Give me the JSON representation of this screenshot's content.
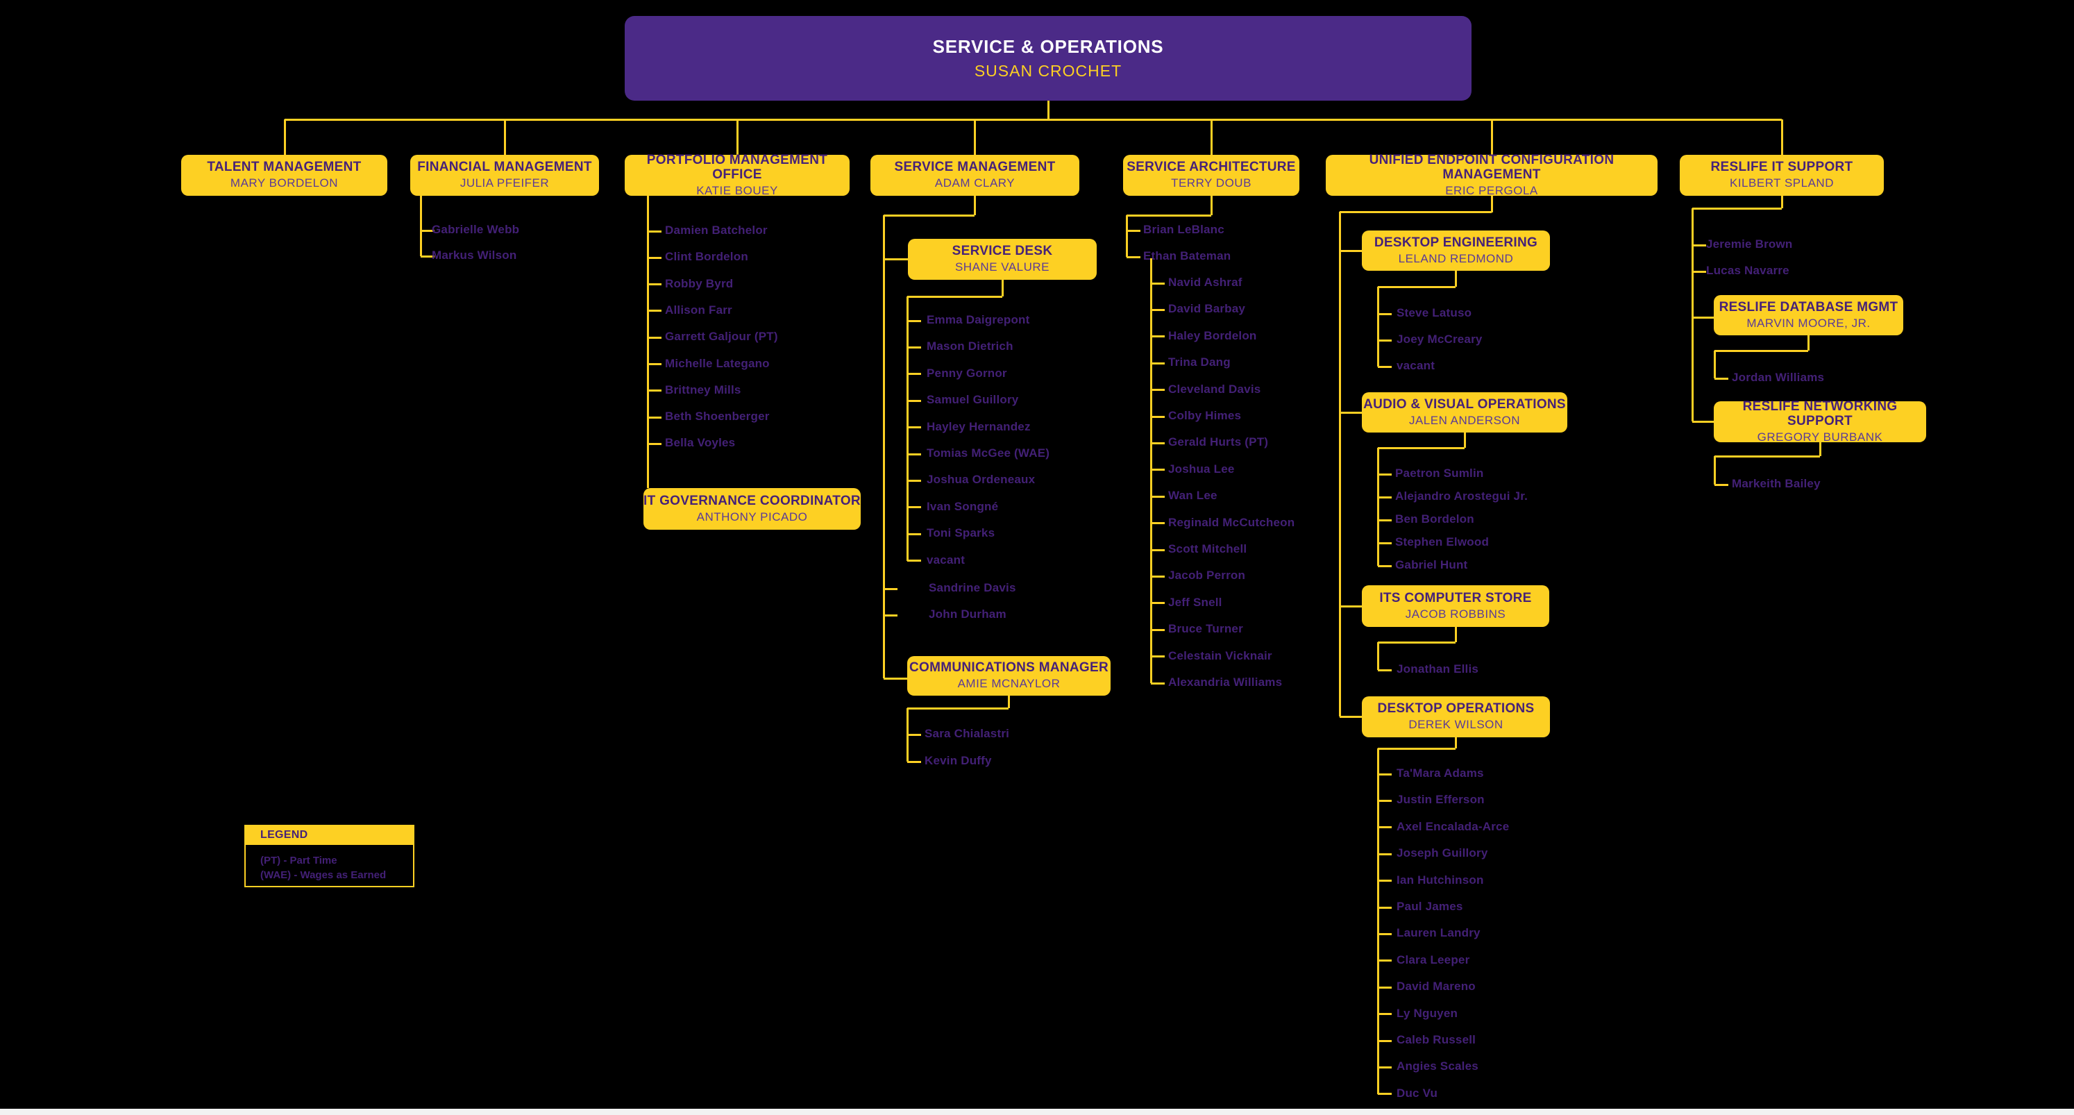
{
  "root": {
    "title": "SERVICE & OPERATIONS",
    "name": "SUSAN CROCHET"
  },
  "departments": [
    {
      "title": "TALENT MANAGEMENT",
      "name": "MARY BORDELON",
      "members": []
    },
    {
      "title": "FINANCIAL MANAGEMENT",
      "name": "JULIA PFEIFER",
      "members": [
        "Gabrielle Webb",
        "Markus Wilson"
      ]
    },
    {
      "title": "PORTFOLIO MANAGEMENT OFFICE",
      "name": "KATIE BOUEY",
      "members": [
        "Damien Batchelor",
        "Clint Bordelon",
        "Robby Byrd",
        "Allison Farr",
        "Garrett Galjour (PT)",
        "Michelle Lategano",
        "Brittney Mills",
        "Beth Shoenberger",
        "Bella Voyles"
      ]
    },
    {
      "title": "SERVICE MANAGEMENT",
      "name": "ADAM CLARY",
      "members": [
        "Sandrine Davis",
        "John Durham"
      ]
    },
    {
      "title": "SERVICE ARCHITECTURE",
      "name": "TERRY DOUB",
      "members": [
        "Brian LeBlanc",
        "Ethan Bateman"
      ]
    },
    {
      "title": "UNIFIED ENDPOINT CONFIGURATION MANAGEMENT",
      "name": "ERIC PERGOLA",
      "members": []
    },
    {
      "title": "RESLIFE IT SUPPORT",
      "name": "KILBERT SPLAND",
      "members": [
        "Jeremie Brown",
        "Lucas Navarre"
      ]
    }
  ],
  "sub_units": {
    "service_desk": {
      "title": "SERVICE DESK",
      "name": "SHANE VALURE",
      "members": [
        "Emma Daigrepont",
        "Mason Dietrich",
        "Penny Gornor",
        "Samuel Guillory",
        "Hayley Hernandez",
        "Tomias McGee (WAE)",
        "Joshua Ordeneaux",
        "Ivan Songné",
        "Toni Sparks",
        "vacant"
      ]
    },
    "it_governance": {
      "title": "IT GOVERNANCE COORDINATOR",
      "name": "ANTHONY PICADO"
    },
    "communications_manager": {
      "title": "COMMUNICATIONS MANAGER",
      "name": "AMIE MCNAYLOR",
      "members": [
        "Sara Chialastri",
        "Kevin Duffy"
      ]
    },
    "ethan_bateman_team": [
      "Navid Ashraf",
      "David Barbay",
      "Haley Bordelon",
      "Trina Dang",
      "Cleveland Davis",
      "Colby Himes",
      "Gerald Hurts (PT)",
      "Joshua Lee",
      "Wan Lee",
      "Reginald McCutcheon",
      "Scott Mitchell",
      "Jacob Perron",
      "Jeff Snell",
      "Bruce Turner",
      "Celestain Vicknair",
      "Alexandria Williams"
    ],
    "desktop_engineering": {
      "title": "DESKTOP ENGINEERING",
      "name": "LELAND REDMOND",
      "members": [
        "Steve Latuso",
        "Joey McCreary",
        "vacant"
      ]
    },
    "audio_visual_operations": {
      "title": "AUDIO & VISUAL OPERATIONS",
      "name": "JALEN ANDERSON",
      "members": [
        "Paetron Sumlin",
        "Alejandro Arostegui Jr.",
        "Ben Bordelon",
        "Stephen Elwood",
        "Gabriel Hunt"
      ]
    },
    "its_computer_store": {
      "title": "ITS COMPUTER STORE",
      "name": "JACOB ROBBINS",
      "members": [
        "Jonathan Ellis"
      ]
    },
    "desktop_operations": {
      "title": "DESKTOP OPERATIONS",
      "name": "DEREK WILSON",
      "members": [
        "Ta'Mara Adams",
        "Justin Efferson",
        "Axel Encalada-Arce",
        "Joseph Guillory",
        "Ian Hutchinson",
        "Paul James",
        "Lauren Landry",
        "Clara Leeper",
        "David Mareno",
        "Ly Nguyen",
        "Caleb Russell",
        "Angies Scales",
        "Duc Vu"
      ]
    },
    "reslife_database_mgmt": {
      "title": "RESLIFE DATABASE MGMT",
      "name": "MARVIN MOORE, JR.",
      "members": [
        "Jordan Williams"
      ]
    },
    "reslife_networking_support": {
      "title": "RESLIFE NETWORKING SUPPORT",
      "name": "GREGORY BURBANK",
      "members": [
        "Markeith Bailey"
      ]
    }
  },
  "legend": {
    "header": "LEGEND",
    "items": [
      "(PT) - Part Time",
      "(WAE) - Wages as Earned"
    ]
  },
  "colors": {
    "background": "#000000",
    "gold": "#FDD023",
    "root_box_purple": "#4B2A87",
    "box_title_text": "#462178",
    "box_name_text": "#5B3A96",
    "member_text": "#432076",
    "root_title_text": "#FFFFFF"
  }
}
